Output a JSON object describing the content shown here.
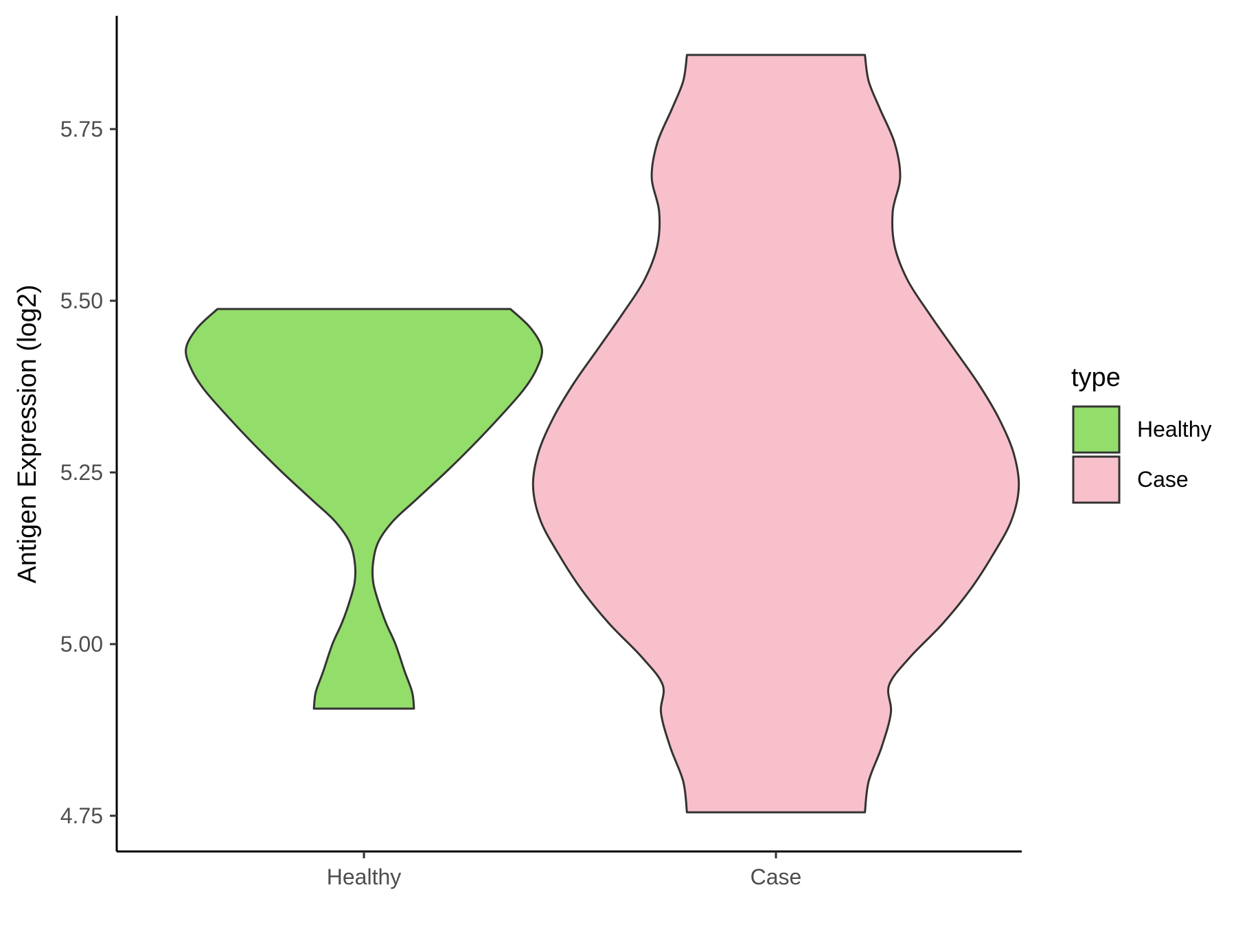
{
  "chart_data": {
    "type": "violin",
    "title": "",
    "xlabel": "",
    "ylabel": "Antigen Expression (log2)",
    "ylim": [
      4.7,
      5.92
    ],
    "yticks": [
      "4.75",
      "5.00",
      "5.25",
      "5.50",
      "5.75"
    ],
    "categories": [
      "Healthy",
      "Case"
    ],
    "grid": false,
    "legend": {
      "title": "type",
      "position": "right",
      "entries": [
        {
          "label": "Healthy",
          "color": "#93dd6a"
        },
        {
          "label": "Case",
          "color": "#f7c0cb"
        }
      ]
    },
    "series": [
      {
        "name": "Healthy",
        "color": "#93dd6a",
        "min": 4.906,
        "max": 5.488,
        "density_profile": [
          [
            4.906,
            0.27
          ],
          [
            4.93,
            0.26
          ],
          [
            4.96,
            0.22
          ],
          [
            5.0,
            0.17
          ],
          [
            5.03,
            0.12
          ],
          [
            5.06,
            0.08
          ],
          [
            5.09,
            0.05
          ],
          [
            5.12,
            0.05
          ],
          [
            5.15,
            0.08
          ],
          [
            5.18,
            0.16
          ],
          [
            5.21,
            0.28
          ],
          [
            5.25,
            0.44
          ],
          [
            5.29,
            0.59
          ],
          [
            5.33,
            0.73
          ],
          [
            5.37,
            0.86
          ],
          [
            5.4,
            0.93
          ],
          [
            5.43,
            0.96
          ],
          [
            5.46,
            0.9
          ],
          [
            5.488,
            0.79
          ]
        ]
      },
      {
        "name": "Case",
        "color": "#f7c0cb",
        "min": 4.755,
        "max": 5.858,
        "density_profile": [
          [
            4.755,
            0.48
          ],
          [
            4.8,
            0.5
          ],
          [
            4.85,
            0.57
          ],
          [
            4.9,
            0.62
          ],
          [
            4.94,
            0.61
          ],
          [
            4.98,
            0.72
          ],
          [
            5.03,
            0.9
          ],
          [
            5.08,
            1.05
          ],
          [
            5.13,
            1.17
          ],
          [
            5.18,
            1.27
          ],
          [
            5.23,
            1.31
          ],
          [
            5.28,
            1.28
          ],
          [
            5.33,
            1.2
          ],
          [
            5.38,
            1.09
          ],
          [
            5.43,
            0.96
          ],
          [
            5.48,
            0.83
          ],
          [
            5.53,
            0.71
          ],
          [
            5.58,
            0.64
          ],
          [
            5.63,
            0.63
          ],
          [
            5.68,
            0.67
          ],
          [
            5.73,
            0.64
          ],
          [
            5.78,
            0.56
          ],
          [
            5.82,
            0.5
          ],
          [
            5.858,
            0.48
          ]
        ]
      }
    ]
  }
}
